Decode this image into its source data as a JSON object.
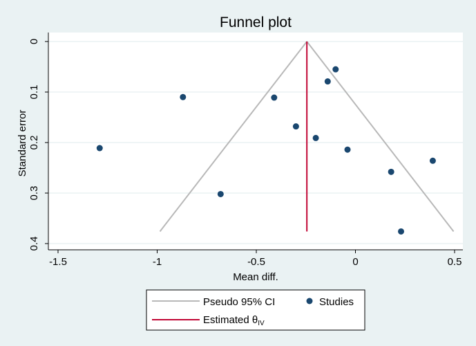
{
  "chart_data": {
    "type": "scatter",
    "title": "Funnel plot",
    "xlabel": "Mean diff.",
    "ylabel": "Standard error",
    "xlim": [
      -1.55,
      0.55
    ],
    "ylim": [
      0,
      0.4
    ],
    "y_reversed": true,
    "x_ticks": [
      -1.5,
      -1,
      -0.5,
      0,
      0.5
    ],
    "x_tick_labels": [
      "-1.5",
      "-1",
      "-0.5",
      "0",
      "0.5"
    ],
    "y_ticks": [
      0,
      0.1,
      0.2,
      0.3,
      0.4
    ],
    "y_tick_labels": [
      "0",
      "0.1",
      "0.2",
      "0.3",
      "0.4"
    ],
    "grid": true,
    "estimate": {
      "x": -0.245,
      "se_max": 0.376
    },
    "pseudo_ci": {
      "apex": [
        -0.245,
        0
      ],
      "left_base": [
        -0.986,
        0.376
      ],
      "right_base": [
        0.495,
        0.376
      ]
    },
    "series": [
      {
        "name": "Studies",
        "color": "#1a476f",
        "points": [
          {
            "x": -0.1,
            "y": 0.055
          },
          {
            "x": -0.14,
            "y": 0.079
          },
          {
            "x": -0.87,
            "y": 0.11
          },
          {
            "x": -0.41,
            "y": 0.111
          },
          {
            "x": -0.3,
            "y": 0.168
          },
          {
            "x": -0.2,
            "y": 0.191
          },
          {
            "x": -1.29,
            "y": 0.211
          },
          {
            "x": -0.04,
            "y": 0.214
          },
          {
            "x": 0.39,
            "y": 0.236
          },
          {
            "x": 0.18,
            "y": 0.258
          },
          {
            "x": -0.68,
            "y": 0.302
          },
          {
            "x": 0.23,
            "y": 0.376
          }
        ]
      }
    ],
    "legend": {
      "placement": "bottom",
      "pseudo_ci_label": "Pseudo 95% CI",
      "studies_label": "Studies",
      "estimate_label_main": "Estimated θ",
      "estimate_label_sub": "IV"
    },
    "colors": {
      "pseudo_ci": "#b8b8b8",
      "estimate": "#c10534",
      "points": "#1a476f",
      "title": "#1a476f"
    }
  }
}
